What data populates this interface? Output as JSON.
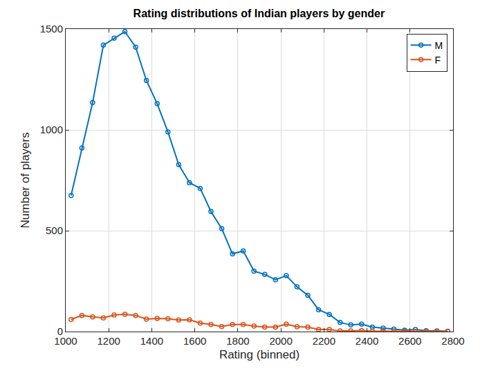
{
  "chart_data": {
    "type": "line",
    "title": "Rating distributions of Indian players by gender",
    "x_label": "Rating (binned)",
    "y_label": "Number of players",
    "x": [
      1025,
      1075,
      1125,
      1175,
      1225,
      1275,
      1325,
      1375,
      1425,
      1475,
      1525,
      1575,
      1625,
      1675,
      1725,
      1775,
      1825,
      1875,
      1925,
      1975,
      2025,
      2075,
      2125,
      2175,
      2225,
      2275,
      2325,
      2375,
      2425,
      2475,
      2525,
      2575,
      2625,
      2675,
      2725,
      2775
    ],
    "series": [
      {
        "name": "M",
        "color": "#0072BD",
        "marker": "circle-open",
        "line_style": "solid",
        "values": [
          675,
          910,
          1135,
          1420,
          1455,
          1487,
          1410,
          1245,
          1130,
          990,
          828,
          738,
          710,
          595,
          510,
          385,
          400,
          300,
          283,
          257,
          277,
          222,
          180,
          108,
          85,
          45,
          33,
          37,
          22,
          17,
          12,
          7,
          10,
          4,
          3,
          2
        ]
      },
      {
        "name": "F",
        "color": "#D95319",
        "marker": "circle-open",
        "line_style": "solid",
        "values": [
          60,
          80,
          73,
          68,
          82,
          86,
          80,
          62,
          65,
          63,
          57,
          58,
          42,
          35,
          25,
          35,
          35,
          27,
          22,
          22,
          37,
          24,
          22,
          10,
          10,
          3,
          3,
          5,
          2,
          3,
          2,
          2,
          1,
          1,
          1,
          1
        ]
      }
    ],
    "xlim": [
      1000,
      2800
    ],
    "xticks": [
      1000,
      1200,
      1400,
      1600,
      1800,
      2000,
      2200,
      2400,
      2600,
      2800
    ],
    "ylim": [
      0,
      1500
    ],
    "yticks": [
      0,
      500,
      1000,
      1500
    ],
    "grid": true,
    "legend": "northeast"
  }
}
